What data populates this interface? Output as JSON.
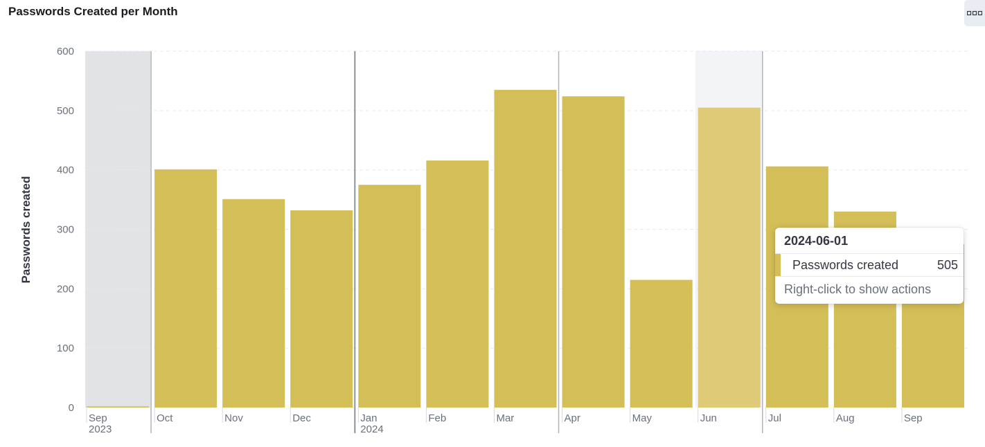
{
  "panel": {
    "title": "Passwords Created per Month",
    "options_icon": "more-dots-icon"
  },
  "colors": {
    "bar": "#d4be58",
    "bar_highlight": "#dfca78",
    "shade_first": "#e1e3e7",
    "shade_highlight": "#f2f4f8",
    "grid": "#e8e9ec"
  },
  "chart_data": {
    "type": "bar",
    "title": "Passwords Created per Month",
    "xlabel": "",
    "ylabel": "Passwords created",
    "ylim": [
      0,
      600
    ],
    "yticks": [
      0,
      100,
      200,
      300,
      400,
      500,
      600
    ],
    "grid": true,
    "categories": [
      "2023-09",
      "2023-10",
      "2023-11",
      "2023-12",
      "2024-01",
      "2024-02",
      "2024-03",
      "2024-04",
      "2024-05",
      "2024-06",
      "2024-07",
      "2024-08",
      "2024-09"
    ],
    "tick_labels": [
      "Sep",
      "Oct",
      "Nov",
      "Dec",
      "Jan",
      "Feb",
      "Mar",
      "Apr",
      "May",
      "Jun",
      "Jul",
      "Aug",
      "Sep"
    ],
    "tick_sublabels": [
      "2023",
      "",
      "",
      "",
      "2024",
      "",
      "",
      "",
      "",
      "",
      "",
      "",
      ""
    ],
    "series": [
      {
        "name": "Passwords created",
        "values": [
          2,
          401,
          351,
          332,
          375,
          416,
          535,
          524,
          215,
          505,
          406,
          330,
          275
        ]
      }
    ],
    "highlighted_index": 9
  },
  "tooltip": {
    "title": "2024-06-01",
    "series_label": "Passwords created",
    "value": "505",
    "footer": "Right-click to show actions"
  }
}
